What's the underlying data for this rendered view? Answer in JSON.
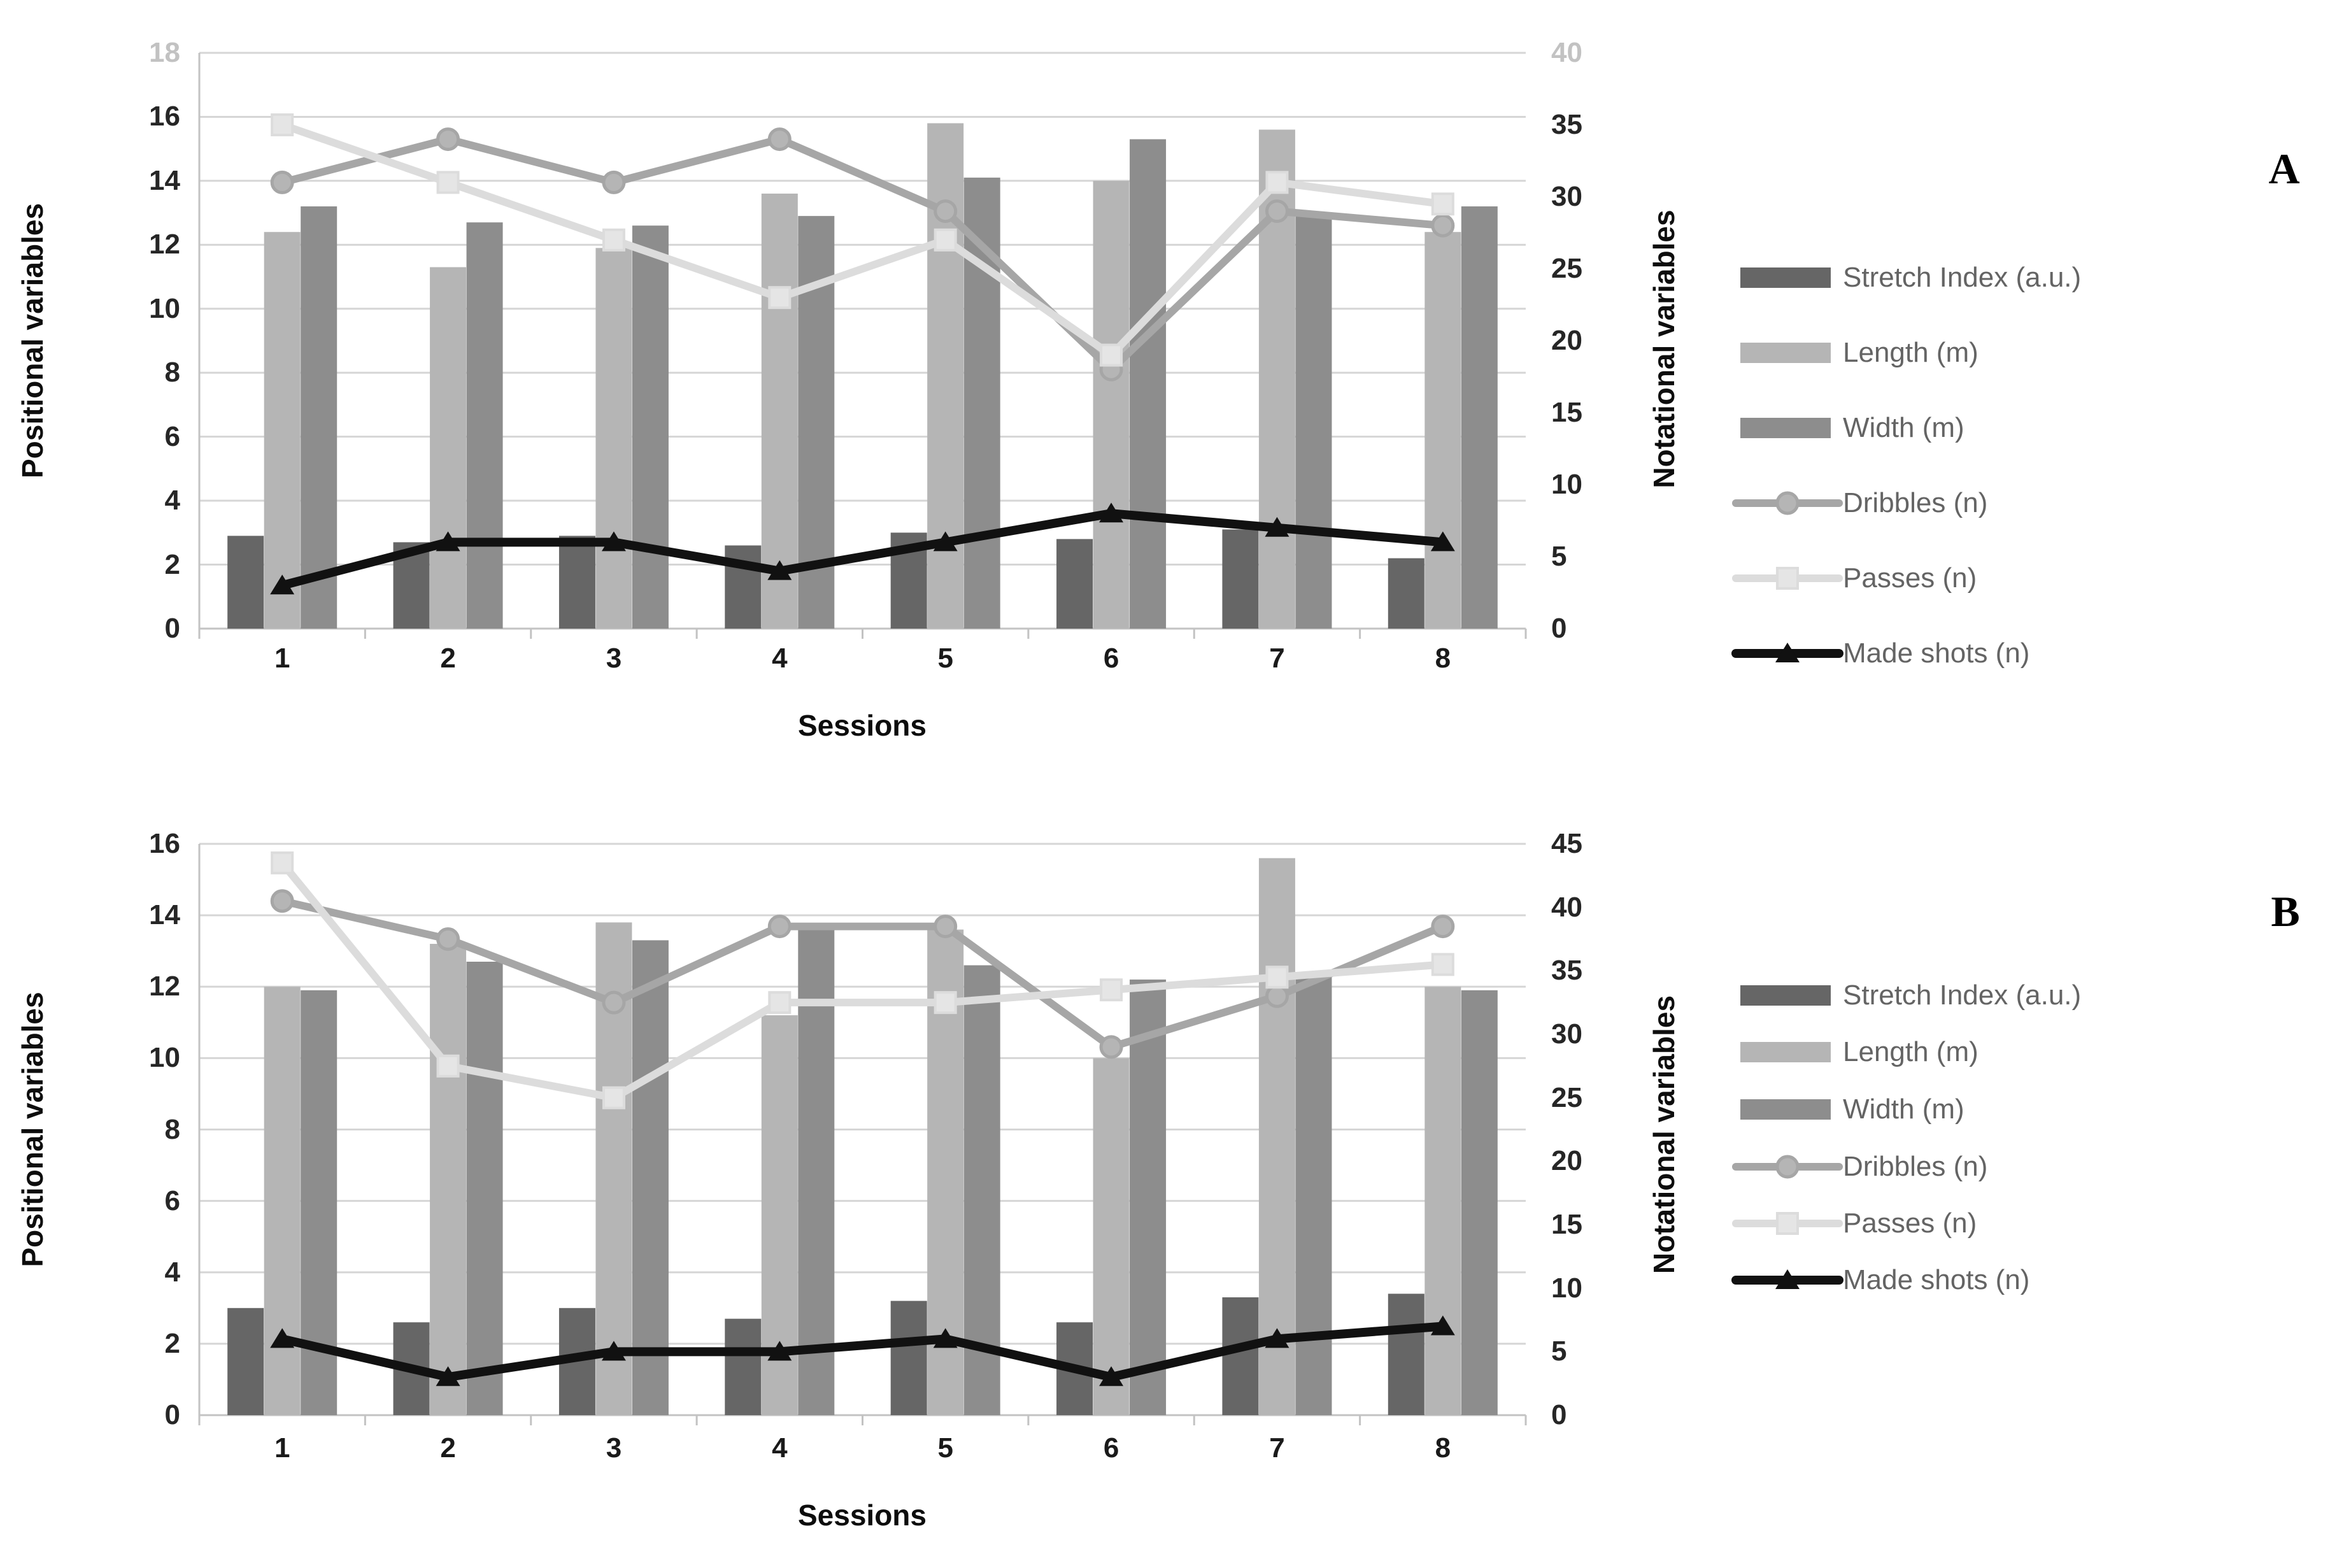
{
  "colors": {
    "background": "#ffffff",
    "stretch_index": "#666666",
    "length": "#b5b5b5",
    "width": "#8d8d8d",
    "dribbles": "#a6a6a6",
    "dribbles_marker": "#b5b5b5",
    "passes": "#dcdcdc",
    "passes_marker": "#e5e5e5",
    "made_shots": "#111111",
    "gridline": "#d6d6d6",
    "axis_line": "#c3c3c3",
    "tick_label": "#262626",
    "tick_label_faded": "#c2c2c2",
    "legend_text": "#646464",
    "panel_letter": "#000000"
  },
  "legend": {
    "items": [
      {
        "label": "Stretch Index (a.u.)",
        "swatch": "bar",
        "color_key": "stretch_index"
      },
      {
        "label": "Length (m)",
        "swatch": "bar",
        "color_key": "length"
      },
      {
        "label": "Width (m)",
        "swatch": "bar",
        "color_key": "width"
      },
      {
        "label": "Dribbles (n)",
        "swatch": "line",
        "marker": "circle",
        "color_key": "dribbles",
        "marker_color_key": "dribbles_marker"
      },
      {
        "label": "Passes (n)",
        "swatch": "line",
        "marker": "square",
        "color_key": "passes",
        "marker_color_key": "passes_marker"
      },
      {
        "label": "Made shots (n)",
        "swatch": "line",
        "marker": "triangle",
        "color_key": "made_shots",
        "marker_color_key": "made_shots"
      }
    ]
  },
  "chart_data": [
    {
      "panel_label": "A",
      "type": "bar+line",
      "categories": [
        "1",
        "2",
        "3",
        "4",
        "5",
        "6",
        "7",
        "8"
      ],
      "x_title": "Sessions",
      "left_axis": {
        "title": "Positional variables",
        "min": 0,
        "max": 18,
        "step": 2,
        "tick_labels": [
          "0",
          "2",
          "4",
          "6",
          "8",
          "10",
          "12",
          "14",
          "16",
          "18"
        ],
        "top_label_faded": true
      },
      "right_axis": {
        "title": "Notational variables",
        "min": 0,
        "max": 40,
        "step": 5,
        "tick_labels": [
          "0",
          "5",
          "10",
          "15",
          "20",
          "25",
          "30",
          "35",
          "40"
        ],
        "top_label_faded": true
      },
      "bar_series": [
        {
          "name": "Stretch Index (a.u.)",
          "axis": "left",
          "color_key": "stretch_index",
          "values": [
            2.9,
            2.7,
            2.9,
            2.6,
            3.0,
            2.8,
            3.1,
            2.2
          ]
        },
        {
          "name": "Length (m)",
          "axis": "left",
          "color_key": "length",
          "values": [
            12.4,
            11.3,
            11.9,
            13.6,
            15.8,
            14.0,
            15.6,
            12.4
          ]
        },
        {
          "name": "Width (m)",
          "axis": "left",
          "color_key": "width",
          "values": [
            13.2,
            12.7,
            12.6,
            12.9,
            14.1,
            15.3,
            12.9,
            13.2
          ]
        }
      ],
      "line_series": [
        {
          "name": "Dribbles (n)",
          "axis": "right",
          "marker": "circle",
          "color_key": "dribbles",
          "marker_color_key": "dribbles_marker",
          "values": [
            31,
            34,
            31,
            34,
            29,
            18,
            29,
            28
          ]
        },
        {
          "name": "Passes (n)",
          "axis": "right",
          "marker": "square",
          "color_key": "passes",
          "marker_color_key": "passes_marker",
          "values": [
            35,
            31,
            27,
            23,
            27,
            19,
            31,
            29.5
          ]
        },
        {
          "name": "Made shots (n)",
          "axis": "right",
          "marker": "triangle",
          "color_key": "made_shots",
          "marker_color_key": "made_shots",
          "values": [
            3,
            6,
            6,
            4,
            6,
            8,
            7,
            6
          ]
        }
      ]
    },
    {
      "panel_label": "B",
      "type": "bar+line",
      "categories": [
        "1",
        "2",
        "3",
        "4",
        "5",
        "6",
        "7",
        "8"
      ],
      "x_title": "Sessions",
      "left_axis": {
        "title": "Positional variables",
        "min": 0,
        "max": 16,
        "step": 2,
        "tick_labels": [
          "0",
          "2",
          "4",
          "6",
          "8",
          "10",
          "12",
          "14",
          "16"
        ],
        "top_label_faded": false
      },
      "right_axis": {
        "title": "Notational variables",
        "min": 0,
        "max": 45,
        "step": 5,
        "tick_labels": [
          "0",
          "5",
          "10",
          "15",
          "20",
          "25",
          "30",
          "35",
          "40",
          "45"
        ],
        "top_label_faded": false
      },
      "bar_series": [
        {
          "name": "Stretch Index (a.u.)",
          "axis": "left",
          "color_key": "stretch_index",
          "values": [
            3.0,
            2.6,
            3.0,
            2.7,
            3.2,
            2.6,
            3.3,
            3.4
          ]
        },
        {
          "name": "Length (m)",
          "axis": "left",
          "color_key": "length",
          "values": [
            12.0,
            13.2,
            13.8,
            11.2,
            13.6,
            10.0,
            15.6,
            12.0
          ]
        },
        {
          "name": "Width (m)",
          "axis": "left",
          "color_key": "width",
          "values": [
            11.9,
            12.7,
            13.3,
            13.6,
            12.6,
            12.2,
            12.3,
            11.9
          ]
        }
      ],
      "line_series": [
        {
          "name": "Dribbles (n)",
          "axis": "right",
          "marker": "circle",
          "color_key": "dribbles",
          "marker_color_key": "dribbles_marker",
          "values": [
            40.5,
            37.5,
            32.5,
            38.5,
            38.5,
            29,
            33,
            38.5
          ]
        },
        {
          "name": "Passes (n)",
          "axis": "right",
          "marker": "square",
          "color_key": "passes",
          "marker_color_key": "passes_marker",
          "values": [
            43.5,
            27.5,
            25,
            32.5,
            32.5,
            33.5,
            34.5,
            35.5
          ]
        },
        {
          "name": "Made shots (n)",
          "axis": "right",
          "marker": "triangle",
          "color_key": "made_shots",
          "marker_color_key": "made_shots",
          "values": [
            6,
            3,
            5,
            5,
            6,
            3,
            6,
            7
          ]
        }
      ]
    }
  ]
}
